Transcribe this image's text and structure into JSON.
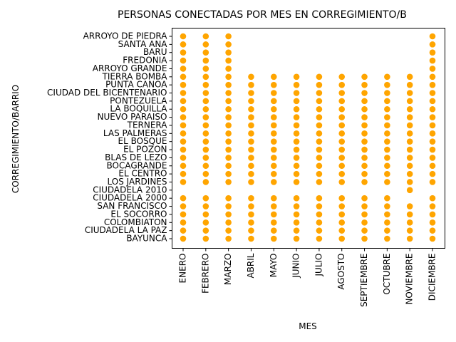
{
  "chart_data": {
    "type": "scatter",
    "title": "PERSONAS CONECTADAS POR MES EN CORREGIMIENTO/B",
    "x_label": "MES",
    "y_label": "CORREGIMIENTO/BARRIO",
    "color": "#ffa500",
    "x_categories": [
      "ENERO",
      "FEBRERO",
      "MARZO",
      "ABRIL",
      "MAYO",
      "JUNIO",
      "JULIO",
      "AGOSTO",
      "SEPTIEMBRE",
      "OCTUBRE",
      "NOVIEMBRE",
      "DICIEMBRE"
    ],
    "y_categories": [
      "BAYUNCA",
      "CIUDADELA LA PAZ",
      "COLOMBIATON",
      "EL SOCORRO",
      "SAN FRANCISCO",
      "CIUDADELA 2000",
      "CIUDADELA 2010",
      "LOS JARDINES",
      "EL CENTRO",
      "BOCAGRANDE",
      "BLAS DE LEZO",
      "EL POZON",
      "EL BOSQUE",
      "LAS PALMERAS",
      "TERNERA",
      "NUEVO PARAISO",
      "LA BOQUILLA",
      "PONTEZUELA",
      "CIUDAD DEL BICENTENARIO",
      "PUNTA CANOA",
      "TIERRA BOMBA",
      "ARROYO GRANDE",
      "FREDONIA",
      "BARU",
      "SANTA ANA",
      "ARROYO DE PIEDRA"
    ],
    "series": [
      {
        "x": "ENERO",
        "values": [
          "BAYUNCA",
          "CIUDADELA LA PAZ",
          "COLOMBIATON",
          "EL SOCORRO",
          "SAN FRANCISCO",
          "CIUDADELA 2000",
          "LOS JARDINES",
          "EL CENTRO",
          "BOCAGRANDE",
          "BLAS DE LEZO",
          "EL POZON",
          "EL BOSQUE",
          "LAS PALMERAS",
          "TERNERA",
          "NUEVO PARAISO",
          "LA BOQUILLA",
          "PONTEZUELA",
          "CIUDAD DEL BICENTENARIO",
          "PUNTA CANOA",
          "TIERRA BOMBA",
          "ARROYO GRANDE",
          "FREDONIA",
          "BARU",
          "SANTA ANA",
          "ARROYO DE PIEDRA"
        ]
      },
      {
        "x": "FEBRERO",
        "values": [
          "BAYUNCA",
          "CIUDADELA LA PAZ",
          "COLOMBIATON",
          "EL SOCORRO",
          "SAN FRANCISCO",
          "CIUDADELA 2000",
          "LOS JARDINES",
          "EL CENTRO",
          "BOCAGRANDE",
          "BLAS DE LEZO",
          "EL POZON",
          "EL BOSQUE",
          "LAS PALMERAS",
          "TERNERA",
          "NUEVO PARAISO",
          "LA BOQUILLA",
          "PONTEZUELA",
          "CIUDAD DEL BICENTENARIO",
          "PUNTA CANOA",
          "TIERRA BOMBA",
          "ARROYO GRANDE",
          "FREDONIA",
          "BARU",
          "SANTA ANA",
          "ARROYO DE PIEDRA"
        ]
      },
      {
        "x": "MARZO",
        "values": [
          "BAYUNCA",
          "CIUDADELA LA PAZ",
          "COLOMBIATON",
          "EL SOCORRO",
          "SAN FRANCISCO",
          "CIUDADELA 2000",
          "LOS JARDINES",
          "EL CENTRO",
          "BOCAGRANDE",
          "BLAS DE LEZO",
          "EL POZON",
          "EL BOSQUE",
          "LAS PALMERAS",
          "TERNERA",
          "NUEVO PARAISO",
          "LA BOQUILLA",
          "PONTEZUELA",
          "CIUDAD DEL BICENTENARIO",
          "PUNTA CANOA",
          "TIERRA BOMBA",
          "ARROYO GRANDE",
          "FREDONIA",
          "BARU",
          "SANTA ANA",
          "ARROYO DE PIEDRA"
        ]
      },
      {
        "x": "ABRIL",
        "values": [
          "BAYUNCA",
          "CIUDADELA LA PAZ",
          "COLOMBIATON",
          "EL SOCORRO",
          "SAN FRANCISCO",
          "CIUDADELA 2000",
          "LOS JARDINES",
          "EL CENTRO",
          "BOCAGRANDE",
          "BLAS DE LEZO",
          "EL POZON",
          "EL BOSQUE",
          "LAS PALMERAS",
          "TERNERA",
          "NUEVO PARAISO",
          "LA BOQUILLA",
          "PONTEZUELA",
          "CIUDAD DEL BICENTENARIO",
          "PUNTA CANOA",
          "TIERRA BOMBA"
        ]
      },
      {
        "x": "MAYO",
        "values": [
          "BAYUNCA",
          "CIUDADELA LA PAZ",
          "COLOMBIATON",
          "EL SOCORRO",
          "SAN FRANCISCO",
          "CIUDADELA 2000",
          "LOS JARDINES",
          "EL CENTRO",
          "BOCAGRANDE",
          "BLAS DE LEZO",
          "EL POZON",
          "EL BOSQUE",
          "LAS PALMERAS",
          "TERNERA",
          "NUEVO PARAISO",
          "LA BOQUILLA",
          "PONTEZUELA",
          "CIUDAD DEL BICENTENARIO",
          "PUNTA CANOA",
          "TIERRA BOMBA"
        ]
      },
      {
        "x": "JUNIO",
        "values": [
          "BAYUNCA",
          "CIUDADELA LA PAZ",
          "COLOMBIATON",
          "EL SOCORRO",
          "SAN FRANCISCO",
          "CIUDADELA 2000",
          "LOS JARDINES",
          "EL CENTRO",
          "BOCAGRANDE",
          "BLAS DE LEZO",
          "EL POZON",
          "EL BOSQUE",
          "LAS PALMERAS",
          "TERNERA",
          "NUEVO PARAISO",
          "LA BOQUILLA",
          "PONTEZUELA",
          "CIUDAD DEL BICENTENARIO",
          "PUNTA CANOA",
          "TIERRA BOMBA"
        ]
      },
      {
        "x": "JULIO",
        "values": [
          "BAYUNCA",
          "CIUDADELA LA PAZ",
          "COLOMBIATON",
          "EL SOCORRO",
          "SAN FRANCISCO",
          "CIUDADELA 2000",
          "LOS JARDINES",
          "EL CENTRO",
          "BOCAGRANDE",
          "BLAS DE LEZO",
          "EL POZON",
          "EL BOSQUE",
          "LAS PALMERAS",
          "TERNERA",
          "NUEVO PARAISO",
          "LA BOQUILLA",
          "PONTEZUELA",
          "CIUDAD DEL BICENTENARIO",
          "PUNTA CANOA",
          "TIERRA BOMBA"
        ]
      },
      {
        "x": "AGOSTO",
        "values": [
          "BAYUNCA",
          "CIUDADELA LA PAZ",
          "COLOMBIATON",
          "EL SOCORRO",
          "SAN FRANCISCO",
          "CIUDADELA 2000",
          "LOS JARDINES",
          "EL CENTRO",
          "BOCAGRANDE",
          "BLAS DE LEZO",
          "EL POZON",
          "EL BOSQUE",
          "LAS PALMERAS",
          "TERNERA",
          "NUEVO PARAISO",
          "LA BOQUILLA",
          "PONTEZUELA",
          "CIUDAD DEL BICENTENARIO",
          "PUNTA CANOA",
          "TIERRA BOMBA"
        ]
      },
      {
        "x": "SEPTIEMBRE",
        "values": [
          "BAYUNCA",
          "CIUDADELA LA PAZ",
          "COLOMBIATON",
          "EL SOCORRO",
          "SAN FRANCISCO",
          "CIUDADELA 2000",
          "LOS JARDINES",
          "EL CENTRO",
          "BOCAGRANDE",
          "BLAS DE LEZO",
          "EL POZON",
          "EL BOSQUE",
          "LAS PALMERAS",
          "TERNERA",
          "NUEVO PARAISO",
          "LA BOQUILLA",
          "PONTEZUELA",
          "CIUDAD DEL BICENTENARIO",
          "PUNTA CANOA",
          "TIERRA BOMBA"
        ]
      },
      {
        "x": "OCTUBRE",
        "values": [
          "BAYUNCA",
          "CIUDADELA LA PAZ",
          "COLOMBIATON",
          "EL SOCORRO",
          "SAN FRANCISCO",
          "CIUDADELA 2000",
          "LOS JARDINES",
          "EL CENTRO",
          "BOCAGRANDE",
          "BLAS DE LEZO",
          "EL POZON",
          "EL BOSQUE",
          "LAS PALMERAS",
          "TERNERA",
          "NUEVO PARAISO",
          "LA BOQUILLA",
          "PONTEZUELA",
          "CIUDAD DEL BICENTENARIO",
          "PUNTA CANOA",
          "TIERRA BOMBA"
        ]
      },
      {
        "x": "NOVIEMBRE",
        "values": [
          "BAYUNCA",
          "CIUDADELA LA PAZ",
          "COLOMBIATON",
          "EL SOCORRO",
          "SAN FRANCISCO",
          "CIUDADELA 2010",
          "LOS JARDINES",
          "EL CENTRO",
          "BOCAGRANDE",
          "BLAS DE LEZO",
          "EL POZON",
          "EL BOSQUE",
          "LAS PALMERAS",
          "TERNERA",
          "NUEVO PARAISO",
          "LA BOQUILLA",
          "PONTEZUELA",
          "CIUDAD DEL BICENTENARIO",
          "PUNTA CANOA",
          "TIERRA BOMBA"
        ]
      },
      {
        "x": "DICIEMBRE",
        "values": [
          "BAYUNCA",
          "CIUDADELA LA PAZ",
          "COLOMBIATON",
          "EL SOCORRO",
          "SAN FRANCISCO",
          "CIUDADELA 2000",
          "LOS JARDINES",
          "EL CENTRO",
          "BOCAGRANDE",
          "BLAS DE LEZO",
          "EL POZON",
          "EL BOSQUE",
          "LAS PALMERAS",
          "TERNERA",
          "NUEVO PARAISO",
          "LA BOQUILLA",
          "PONTEZUELA",
          "CIUDAD DEL BICENTENARIO",
          "PUNTA CANOA",
          "TIERRA BOMBA",
          "ARROYO GRANDE",
          "FREDONIA",
          "BARU",
          "SANTA ANA",
          "ARROYO DE PIEDRA"
        ]
      }
    ]
  }
}
